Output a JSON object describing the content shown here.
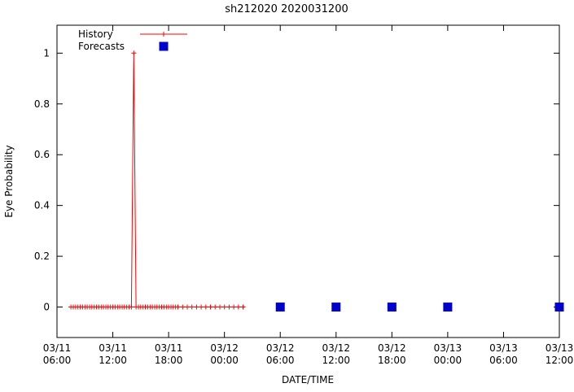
{
  "chart_data": {
    "type": "line",
    "title": "sh212020 2020031200",
    "xlabel": "DATE/TIME",
    "ylabel": "Eye Probability",
    "grid": false,
    "legend_position": "top-left-inside",
    "xlim_hours": [
      6,
      60
    ],
    "ylim": [
      -0.12,
      1.11
    ],
    "x_ticks": [
      {
        "hour": 6,
        "line1": "03/11",
        "line2": "06:00"
      },
      {
        "hour": 12,
        "line1": "03/11",
        "line2": "12:00"
      },
      {
        "hour": 18,
        "line1": "03/11",
        "line2": "18:00"
      },
      {
        "hour": 24,
        "line1": "03/12",
        "line2": "00:00"
      },
      {
        "hour": 30,
        "line1": "03/12",
        "line2": "06:00"
      },
      {
        "hour": 36,
        "line1": "03/12",
        "line2": "12:00"
      },
      {
        "hour": 42,
        "line1": "03/12",
        "line2": "18:00"
      },
      {
        "hour": 48,
        "line1": "03/13",
        "line2": "00:00"
      },
      {
        "hour": 54,
        "line1": "03/13",
        "line2": "06:00"
      },
      {
        "hour": 60,
        "line1": "03/13",
        "line2": "12:00"
      }
    ],
    "y_ticks": [
      0,
      0.2,
      0.4,
      0.6,
      0.8,
      1
    ],
    "y_tick_labels": [
      "0",
      "0.2",
      "0.4",
      "0.6",
      "0.8",
      "1"
    ],
    "series": [
      {
        "name": "History",
        "style": "line-with-plus-markers",
        "color": "#ff0000",
        "hours": [
          7.5,
          7.75,
          8,
          8.25,
          8.5,
          8.75,
          9,
          9.25,
          9.5,
          9.75,
          10,
          10.25,
          10.5,
          10.75,
          11,
          11.25,
          11.5,
          11.75,
          12,
          12.25,
          12.5,
          12.75,
          13,
          13.25,
          13.5,
          13.75,
          14,
          14.25,
          14.5,
          14.75,
          15,
          15.25,
          15.5,
          15.75,
          16,
          16.25,
          16.5,
          16.75,
          17,
          17.25,
          17.5,
          17.75,
          18,
          18.25,
          18.5,
          18.75,
          19,
          19.5,
          20,
          20.5,
          21,
          21.5,
          22,
          22.5,
          23,
          23.5,
          24,
          24.5,
          25,
          25.5,
          26
        ],
        "values": [
          0,
          0,
          0,
          0,
          0,
          0,
          0,
          0,
          0,
          0,
          0,
          0,
          0,
          0,
          0,
          0,
          0,
          0,
          0,
          0,
          0,
          0,
          0,
          0,
          0,
          0,
          0,
          1,
          0,
          0,
          0,
          0,
          0,
          0,
          0,
          0,
          0,
          0,
          0,
          0,
          0,
          0,
          0,
          0,
          0,
          0,
          0,
          0,
          0,
          0,
          0,
          0,
          0,
          0,
          0,
          0,
          0,
          0,
          0,
          0,
          0
        ]
      },
      {
        "name": "Forecasts",
        "style": "filled-squares",
        "color": "#0000cc",
        "hours": [
          30,
          36,
          42,
          48,
          60
        ],
        "values": [
          0,
          0,
          0,
          0,
          0
        ]
      }
    ]
  }
}
